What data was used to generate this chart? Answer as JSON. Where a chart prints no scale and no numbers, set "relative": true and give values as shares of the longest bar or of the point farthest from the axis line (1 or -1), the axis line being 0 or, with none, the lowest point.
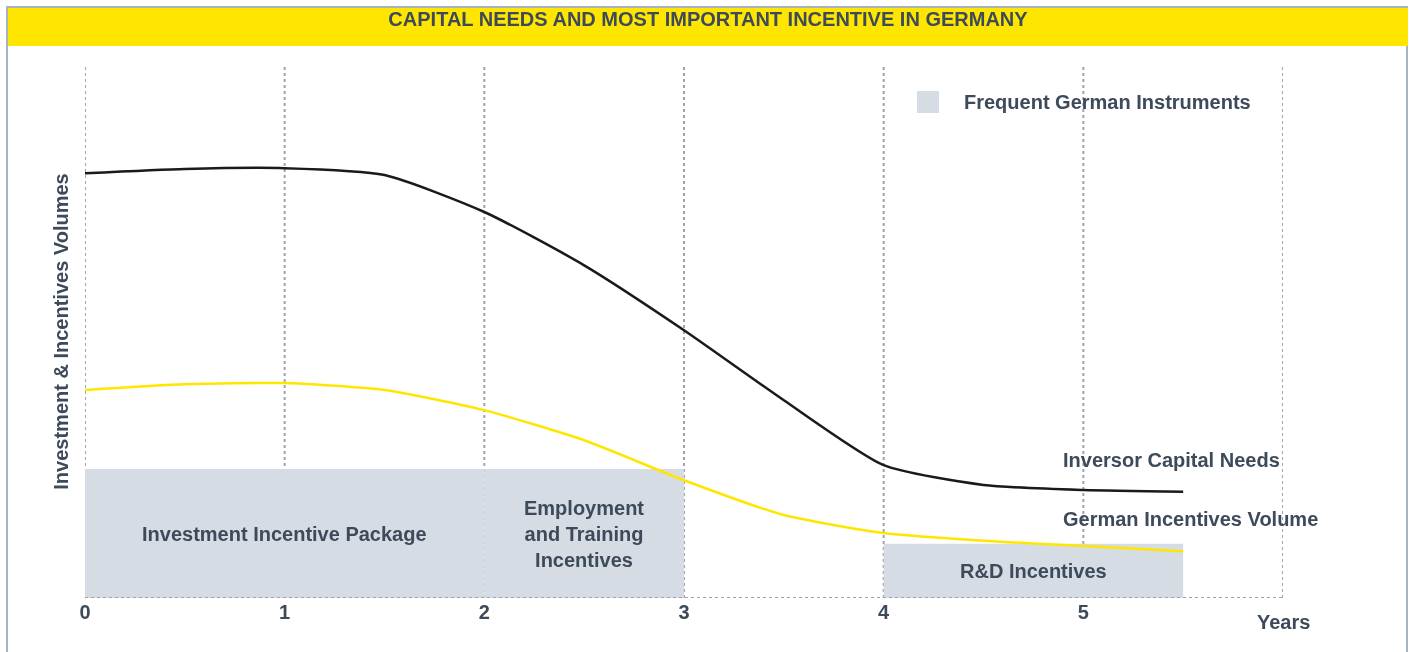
{
  "chart_data": {
    "type": "line",
    "title": "CAPITAL NEEDS AND MOST IMPORTANT INCENTIVE IN GERMANY",
    "xlabel": "Years",
    "ylabel": "Investment & Incentives Volumes",
    "legend_title": "Frequent German Instruments",
    "relative": true,
    "grid": "x",
    "marker": "none",
    "line_style": "solid",
    "x": [
      0,
      0.5,
      1,
      1.5,
      2,
      2.5,
      3,
      3.5,
      4,
      4.5,
      5,
      5.5
    ],
    "xlim": [
      0,
      6
    ],
    "xticks": [
      0,
      1,
      2,
      3,
      4,
      5,
      {
        "value": 6,
        "label": null
      }
    ],
    "series": [
      {
        "name": "Inversor Capital Needs",
        "color": "#1a1a1a",
        "values": [
          0.988,
          0.998,
          1.0,
          0.984,
          0.898,
          0.774,
          0.623,
          0.46,
          0.309,
          0.263,
          0.251,
          0.247
        ]
      },
      {
        "name": "German Incentives Volume",
        "color": "#ffe600",
        "values": [
          0.484,
          0.497,
          0.5,
          0.484,
          0.437,
          0.367,
          0.274,
          0.193,
          0.151,
          0.133,
          0.121,
          0.109
        ]
      }
    ],
    "bands": [
      {
        "axis": "x",
        "from": 0,
        "to": 2,
        "label": "Investment Incentive Package",
        "color": "#d6dce4"
      },
      {
        "axis": "x",
        "from": 2,
        "to": 3,
        "label": "Employment and Training Incentives",
        "color": "#d6dce4"
      },
      {
        "axis": "x",
        "from": 4,
        "to": 5.5,
        "label": "R&D Incentives",
        "color": "#d6dce4"
      }
    ]
  }
}
